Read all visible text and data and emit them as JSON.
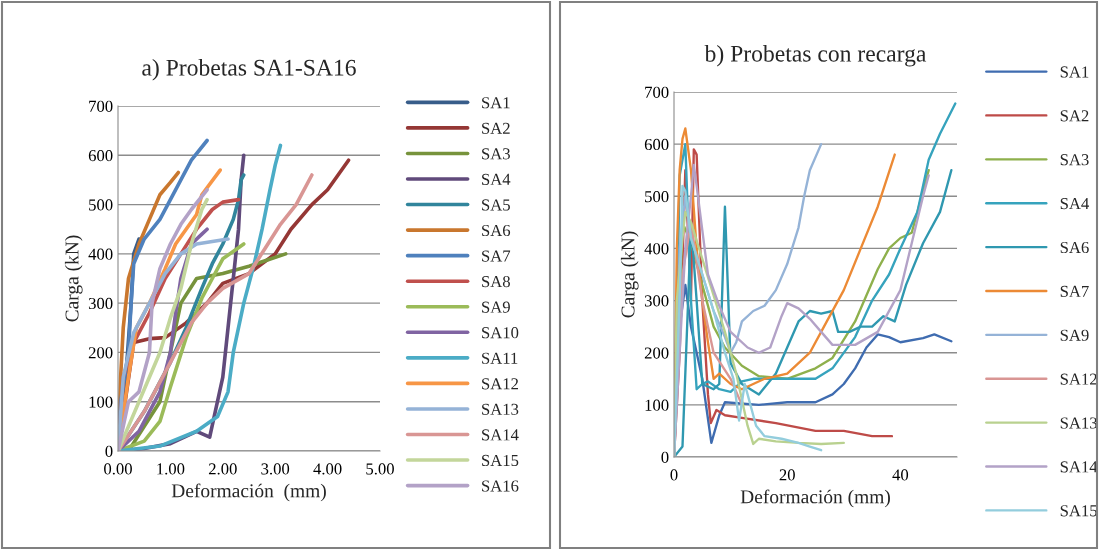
{
  "chart_data": [
    {
      "type": "line",
      "title": "a) Probetas SA1-SA16",
      "xlabel": "Deformación  (mm)",
      "ylabel": "Carga (kN)",
      "xlim": [
        0,
        5
      ],
      "xticks": [
        {
          "value": 0,
          "label": "0.00"
        },
        {
          "value": 1,
          "label": "1.00"
        },
        {
          "value": 2,
          "label": "2.00"
        },
        {
          "value": 3,
          "label": "3.00"
        },
        {
          "value": 4,
          "label": "4.00"
        },
        {
          "value": 5,
          "label": "5.00"
        }
      ],
      "ylim": [
        0,
        700
      ],
      "yticks": [
        0,
        100,
        200,
        300,
        400,
        500,
        600,
        700
      ],
      "grid": "y",
      "legend": "right",
      "series": [
        {
          "name": "SA1",
          "color": "#385d8a",
          "x": [
            0,
            0.15,
            0.25,
            0.3,
            0.4
          ],
          "values": [
            0,
            150,
            300,
            400,
            430
          ]
        },
        {
          "name": "SA2",
          "color": "#953735",
          "x": [
            0,
            0.3,
            0.6,
            0.9,
            1.3,
            1.7,
            2.0,
            2.5,
            3.0,
            3.3,
            3.7,
            4.0,
            4.4
          ],
          "values": [
            0,
            220,
            228,
            230,
            260,
            300,
            340,
            360,
            400,
            450,
            500,
            530,
            590
          ]
        },
        {
          "name": "SA3",
          "color": "#77933c",
          "x": [
            0,
            0.2,
            0.8,
            1.0,
            1.2,
            1.5,
            2.0,
            2.5,
            3.2
          ],
          "values": [
            0,
            0,
            100,
            200,
            300,
            350,
            360,
            375,
            400
          ]
        },
        {
          "name": "SA4",
          "color": "#604a7b",
          "x": [
            0,
            0.5,
            1.0,
            1.5,
            1.75,
            2.0,
            2.1,
            2.2,
            2.3,
            2.35,
            2.4
          ],
          "values": [
            0,
            5,
            15,
            40,
            28,
            150,
            250,
            350,
            450,
            550,
            600
          ]
        },
        {
          "name": "SA5",
          "color": "#31859c",
          "x": [
            0,
            0.5,
            1.0,
            1.3,
            1.6,
            1.8,
            2.0,
            2.2,
            2.3,
            2.35,
            2.4
          ],
          "values": [
            0,
            80,
            180,
            250,
            330,
            380,
            420,
            470,
            510,
            550,
            560
          ]
        },
        {
          "name": "SA6",
          "color": "#c9772e",
          "x": [
            0,
            0.05,
            0.1,
            0.2,
            0.4,
            0.6,
            0.8,
            1.0,
            1.15
          ],
          "values": [
            0,
            150,
            250,
            350,
            420,
            470,
            520,
            545,
            565
          ]
        },
        {
          "name": "SA7",
          "color": "#4f81bd",
          "x": [
            0,
            0.05,
            0.2,
            0.25,
            0.3,
            0.5,
            0.8,
            1.0,
            1.2,
            1.4,
            1.7
          ],
          "values": [
            0,
            100,
            200,
            300,
            380,
            430,
            470,
            510,
            550,
            590,
            630
          ]
        },
        {
          "name": "SA8",
          "color": "#c0504d",
          "x": [
            0,
            0.1,
            0.3,
            0.6,
            0.9,
            1.2,
            1.5,
            1.8,
            2.0,
            2.3
          ],
          "values": [
            0,
            150,
            220,
            280,
            350,
            400,
            450,
            490,
            505,
            510
          ]
        },
        {
          "name": "SA9",
          "color": "#9bbb59",
          "x": [
            0,
            0.5,
            0.8,
            1.0,
            1.3,
            1.6,
            1.8,
            2.0,
            2.4
          ],
          "values": [
            0,
            20,
            60,
            130,
            230,
            310,
            350,
            390,
            420
          ]
        },
        {
          "name": "SA10",
          "color": "#8064a2",
          "x": [
            0,
            0.4,
            0.8,
            1.0,
            1.1,
            1.2,
            1.4,
            1.6,
            1.7
          ],
          "values": [
            0,
            40,
            120,
            200,
            280,
            350,
            420,
            440,
            450
          ]
        },
        {
          "name": "SA11",
          "color": "#4bacc6",
          "x": [
            0,
            0.8,
            1.5,
            1.9,
            2.1,
            2.2,
            2.4,
            2.6,
            2.75,
            2.9,
            3.0,
            3.1
          ],
          "values": [
            0,
            10,
            40,
            70,
            120,
            200,
            300,
            380,
            450,
            530,
            580,
            620
          ]
        },
        {
          "name": "SA12",
          "color": "#f79646",
          "x": [
            0,
            0.2,
            0.35,
            0.6,
            0.9,
            1.1,
            1.3,
            1.5,
            1.6,
            1.95
          ],
          "values": [
            0,
            150,
            250,
            300,
            370,
            420,
            450,
            480,
            520,
            570
          ]
        },
        {
          "name": "SA13",
          "color": "#95b3d7",
          "x": [
            0,
            0.1,
            0.3,
            0.6,
            0.9,
            1.2,
            1.5,
            2.1
          ],
          "values": [
            0,
            150,
            240,
            300,
            360,
            400,
            420,
            430
          ]
        },
        {
          "name": "SA14",
          "color": "#d99694",
          "x": [
            0,
            0.5,
            1.0,
            1.4,
            1.7,
            2.0,
            2.5,
            2.8,
            3.1,
            3.4,
            3.7
          ],
          "values": [
            0,
            80,
            180,
            260,
            300,
            330,
            360,
            410,
            460,
            500,
            560
          ]
        },
        {
          "name": "SA15",
          "color": "#c3d69b",
          "x": [
            0,
            0.4,
            0.8,
            1.0,
            1.2,
            1.4,
            1.6,
            1.7
          ],
          "values": [
            0,
            100,
            200,
            270,
            330,
            420,
            490,
            510
          ]
        },
        {
          "name": "SA16",
          "color": "#b3a2c7",
          "x": [
            0,
            0.2,
            0.4,
            0.6,
            0.65,
            0.8,
            1.0,
            1.2,
            1.4,
            1.7
          ],
          "values": [
            0,
            100,
            120,
            200,
            300,
            370,
            420,
            460,
            490,
            530
          ]
        }
      ]
    },
    {
      "type": "line",
      "title": "b) Probetas con recarga",
      "xlabel": "Deformación (mm)",
      "ylabel": "Carga (kN)",
      "xlim": [
        0,
        50
      ],
      "xticks": [
        0,
        20,
        40
      ],
      "ylim": [
        0,
        700
      ],
      "yticks": [
        0,
        100,
        200,
        300,
        400,
        500,
        600,
        700
      ],
      "grid": "y",
      "legend": "right",
      "series": [
        {
          "name": "SA1",
          "color": "#3f6cb0",
          "x": [
            0,
            1,
            2,
            3,
            5,
            6.6,
            8,
            9,
            15,
            20,
            25,
            28,
            30,
            32,
            34,
            36,
            38,
            40,
            44,
            46,
            49
          ],
          "values": [
            0,
            250,
            330,
            250,
            150,
            27,
            80,
            105,
            100,
            105,
            105,
            120,
            140,
            170,
            210,
            235,
            230,
            220,
            228,
            235,
            222
          ]
        },
        {
          "name": "SA2",
          "color": "#be4b48",
          "x": [
            0,
            1,
            2,
            3,
            3.5,
            4,
            5,
            6,
            6.5,
            7.5,
            9,
            12,
            18,
            25,
            30,
            35,
            38.5
          ],
          "values": [
            0,
            200,
            550,
            300,
            590,
            580,
            300,
            120,
            65,
            90,
            80,
            75,
            65,
            50,
            50,
            40,
            40
          ]
        },
        {
          "name": "SA3",
          "color": "#8eb04c",
          "x": [
            0,
            1,
            1.5,
            3,
            5,
            7,
            9,
            12,
            15,
            20,
            25,
            28,
            32,
            36,
            38,
            40,
            42,
            45
          ],
          "values": [
            0,
            300,
            450,
            410,
            330,
            250,
            210,
            175,
            155,
            150,
            170,
            190,
            260,
            360,
            400,
            420,
            430,
            550
          ]
        },
        {
          "name": "SA4",
          "color": "#36a3bd",
          "x": [
            0,
            1,
            2,
            3,
            4,
            5,
            6,
            8,
            10,
            12,
            14,
            16,
            20,
            25,
            28,
            32,
            35,
            38,
            40,
            43,
            45,
            47,
            49.7
          ],
          "values": [
            0,
            540,
            600,
            300,
            130,
            140,
            145,
            130,
            125,
            145,
            150,
            150,
            150,
            150,
            170,
            230,
            300,
            350,
            400,
            470,
            570,
            620,
            678
          ]
        },
        {
          "name": "SA6",
          "color": "#2f98b0",
          "x": [
            0,
            1.5,
            2.5,
            3,
            4,
            5,
            7,
            8,
            9,
            10,
            12,
            15,
            18,
            20,
            22,
            24,
            26,
            28,
            29,
            31,
            33,
            35,
            37,
            39,
            41,
            44,
            47,
            49
          ],
          "values": [
            0,
            20,
            300,
            450,
            300,
            140,
            130,
            140,
            480,
            180,
            140,
            120,
            160,
            210,
            260,
            280,
            275,
            280,
            240,
            240,
            250,
            250,
            270,
            260,
            330,
            410,
            470,
            550
          ]
        },
        {
          "name": "SA7",
          "color": "#ec8a35",
          "x": [
            0,
            0.5,
            1,
            1.5,
            2,
            3,
            4,
            5,
            6,
            7,
            8,
            10,
            12,
            14,
            16,
            20,
            24,
            27,
            30,
            33,
            36,
            39
          ],
          "values": [
            0,
            400,
            550,
            610,
            630,
            550,
            400,
            300,
            220,
            150,
            160,
            140,
            130,
            140,
            150,
            160,
            200,
            260,
            320,
            400,
            480,
            580
          ]
        },
        {
          "name": "SA9",
          "color": "#95b3d7",
          "x": [
            0,
            1,
            2,
            3,
            5,
            7,
            9,
            10,
            11,
            12,
            14,
            16,
            18,
            20,
            22,
            23,
            24,
            26
          ],
          "values": [
            0,
            400,
            500,
            420,
            350,
            280,
            230,
            200,
            220,
            260,
            280,
            290,
            320,
            370,
            440,
            500,
            550,
            600
          ]
        },
        {
          "name": "SA12",
          "color": "#d99694",
          "x": [
            0,
            1.5,
            3,
            5,
            7,
            10,
            12
          ],
          "values": [
            0,
            350,
            450,
            300,
            200,
            150,
            100
          ]
        },
        {
          "name": "SA13",
          "color": "#b9d18f",
          "x": [
            0,
            0.5,
            1.5,
            2,
            3,
            5,
            7,
            9,
            11,
            12,
            13,
            14,
            15,
            18,
            22,
            26,
            30
          ],
          "values": [
            0,
            300,
            420,
            470,
            450,
            380,
            310,
            240,
            160,
            110,
            60,
            25,
            35,
            30,
            27,
            25,
            27
          ]
        },
        {
          "name": "SA14",
          "color": "#b3a2c7",
          "x": [
            0,
            1,
            2,
            3,
            3.5,
            4,
            6,
            8,
            10,
            13,
            15,
            17,
            19,
            20,
            22,
            24,
            26,
            28,
            32,
            36,
            40,
            42,
            44,
            45
          ],
          "values": [
            0,
            200,
            400,
            500,
            560,
            520,
            350,
            290,
            240,
            210,
            200,
            210,
            270,
            295,
            285,
            265,
            240,
            215,
            215,
            240,
            320,
            410,
            500,
            540
          ]
        },
        {
          "name": "SA15",
          "color": "#93cddd",
          "x": [
            0,
            1,
            1.5,
            2,
            3,
            5,
            7,
            9,
            10.5,
            11.5,
            12.5,
            13,
            14.5,
            16,
            19,
            22,
            24,
            26
          ],
          "values": [
            0,
            300,
            520,
            510,
            420,
            350,
            280,
            200,
            150,
            70,
            140,
            120,
            60,
            40,
            35,
            27,
            20,
            13
          ]
        }
      ]
    }
  ]
}
